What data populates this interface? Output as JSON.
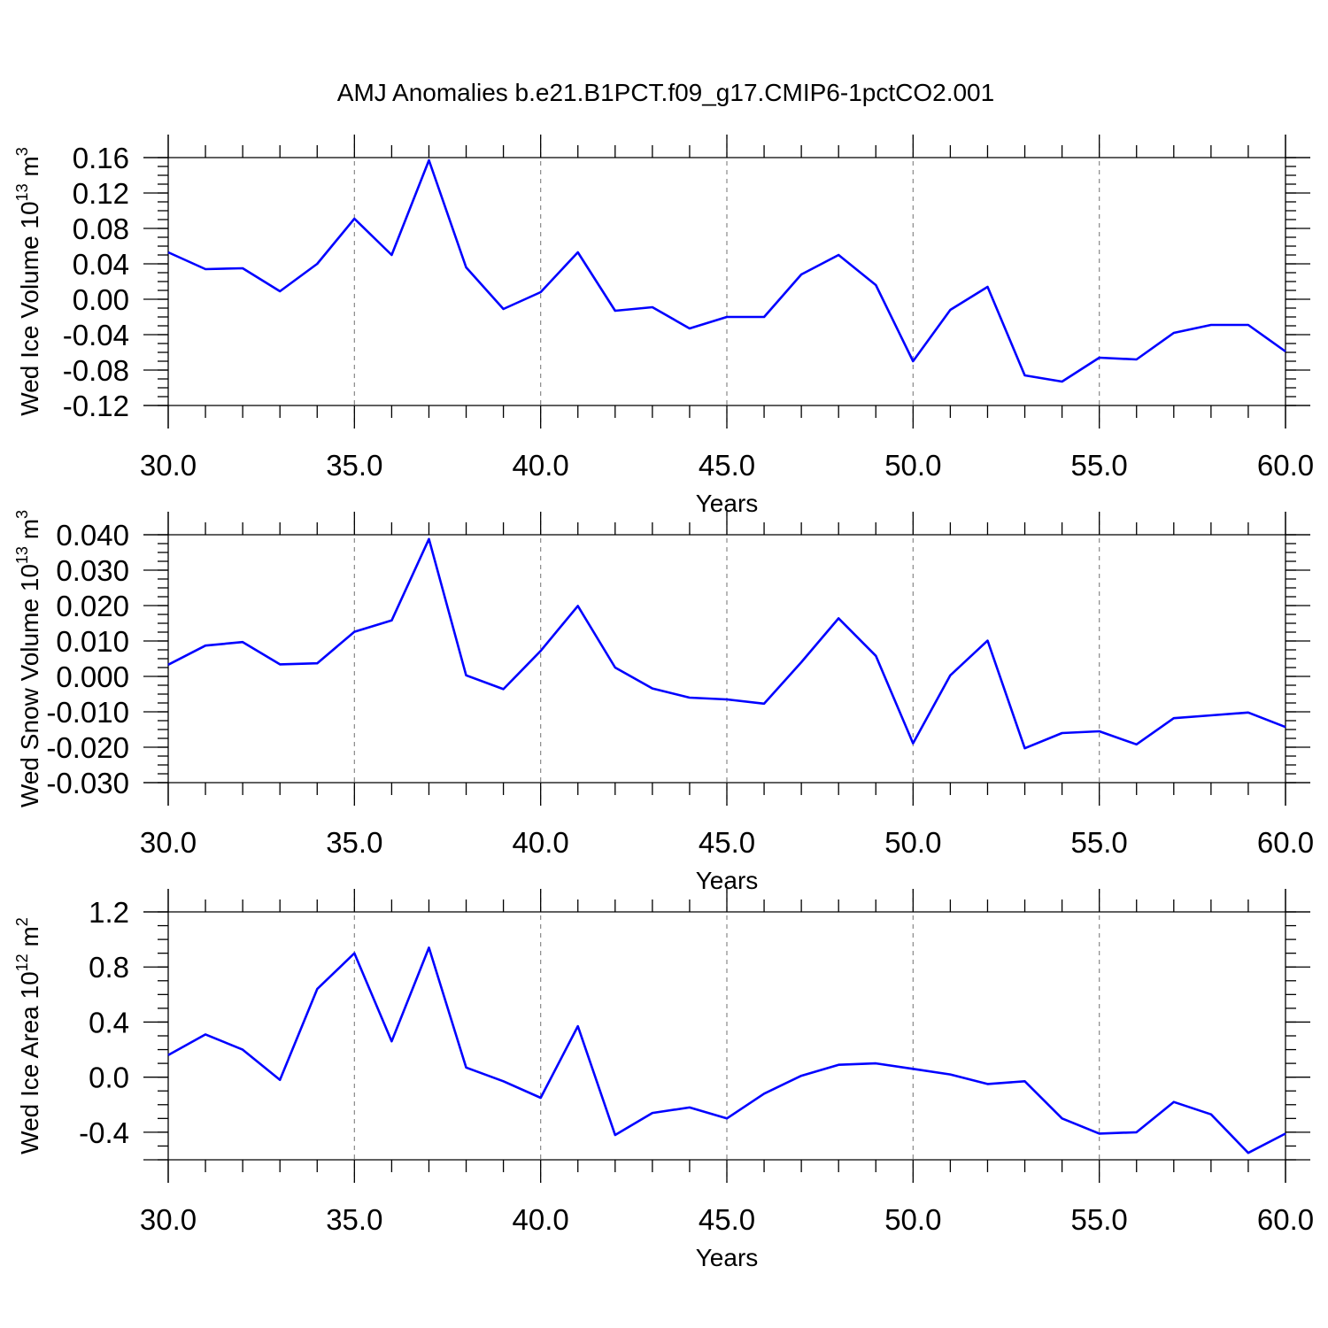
{
  "title": "AMJ Anomalies b.e21.B1PCT.f09_g17.CMIP6-1pctCO2.001",
  "line_color": "#0000ff",
  "chart_data": [
    {
      "type": "line",
      "ylabel": "Wed Ice Volume 10",
      "ylabel_exponent": "13",
      "ylabel_unit": "m",
      "ylabel_unit_exponent": "3",
      "xlabel": "Years",
      "xlim": [
        30,
        60
      ],
      "ylim": [
        -0.12,
        0.16
      ],
      "xticks": [
        30,
        35,
        40,
        45,
        50,
        55,
        60
      ],
      "xtick_labels": [
        "30.0",
        "35.0",
        "40.0",
        "45.0",
        "50.0",
        "55.0",
        "60.0"
      ],
      "yticks": [
        -0.12,
        -0.08,
        -0.04,
        0.0,
        0.04,
        0.08,
        0.12,
        0.16
      ],
      "ytick_labels": [
        "-0.12",
        "-0.08",
        "-0.04",
        "0.00",
        "0.04",
        "0.08",
        "0.12",
        "0.16"
      ],
      "yminor_step": 0.01,
      "grid": "vertical dashed",
      "x": [
        30,
        31,
        32,
        33,
        34,
        35,
        36,
        37,
        38,
        39,
        40,
        41,
        42,
        43,
        44,
        45,
        46,
        47,
        48,
        49,
        50,
        51,
        52,
        53,
        54,
        55,
        56,
        57,
        58,
        59,
        60
      ],
      "values": [
        0.053,
        0.034,
        0.035,
        0.009,
        0.04,
        0.091,
        0.05,
        0.157,
        0.036,
        -0.011,
        0.008,
        0.053,
        -0.013,
        -0.009,
        -0.033,
        -0.02,
        -0.02,
        0.028,
        0.05,
        0.016,
        -0.07,
        -0.012,
        0.014,
        -0.086,
        -0.093,
        -0.066,
        -0.068,
        -0.038,
        -0.029,
        -0.029,
        -0.059
      ]
    },
    {
      "type": "line",
      "ylabel": "Wed Snow Volume 10",
      "ylabel_exponent": "13",
      "ylabel_unit": "m",
      "ylabel_unit_exponent": "3",
      "xlabel": "Years",
      "xlim": [
        30,
        60
      ],
      "ylim": [
        -0.03,
        0.04
      ],
      "xticks": [
        30,
        35,
        40,
        45,
        50,
        55,
        60
      ],
      "xtick_labels": [
        "30.0",
        "35.0",
        "40.0",
        "45.0",
        "50.0",
        "55.0",
        "60.0"
      ],
      "yticks": [
        -0.03,
        -0.02,
        -0.01,
        0.0,
        0.01,
        0.02,
        0.03,
        0.04
      ],
      "ytick_labels": [
        "-0.030",
        "-0.020",
        "-0.010",
        "0.000",
        "0.010",
        "0.020",
        "0.030",
        "0.040"
      ],
      "yminor_step": 0.0025,
      "grid": "vertical dashed",
      "x": [
        30,
        31,
        32,
        33,
        34,
        35,
        36,
        37,
        38,
        39,
        40,
        41,
        42,
        43,
        44,
        45,
        46,
        47,
        48,
        49,
        50,
        51,
        52,
        53,
        54,
        55,
        56,
        57,
        58,
        59,
        60
      ],
      "values": [
        0.0033,
        0.0087,
        0.0097,
        0.0034,
        0.0037,
        0.0126,
        0.0158,
        0.0388,
        0.0003,
        -0.0036,
        0.0072,
        0.0199,
        0.0025,
        -0.0034,
        -0.006,
        -0.0065,
        -0.0077,
        0.004,
        0.0164,
        0.0058,
        -0.0189,
        0.0003,
        0.0101,
        -0.0203,
        -0.016,
        -0.0155,
        -0.0192,
        -0.0118,
        -0.011,
        -0.0102,
        -0.0143
      ]
    },
    {
      "type": "line",
      "ylabel": "Wed Ice Area 10",
      "ylabel_exponent": "12",
      "ylabel_unit": "m",
      "ylabel_unit_exponent": "2",
      "xlabel": "Years",
      "xlim": [
        30,
        60
      ],
      "ylim": [
        -0.6,
        1.2
      ],
      "xticks": [
        30,
        35,
        40,
        45,
        50,
        55,
        60
      ],
      "xtick_labels": [
        "30.0",
        "35.0",
        "40.0",
        "45.0",
        "50.0",
        "55.0",
        "60.0"
      ],
      "yticks": [
        -0.4,
        0.0,
        0.4,
        0.8,
        1.2
      ],
      "ytick_labels": [
        "-0.4",
        "0.0",
        "0.4",
        "0.8",
        "1.2"
      ],
      "yminor_step": 0.1,
      "grid": "vertical dashed",
      "x": [
        30,
        31,
        32,
        33,
        34,
        35,
        36,
        37,
        38,
        39,
        40,
        41,
        42,
        43,
        44,
        45,
        46,
        47,
        48,
        49,
        50,
        51,
        52,
        53,
        54,
        55,
        56,
        57,
        58,
        59,
        60
      ],
      "values": [
        0.16,
        0.31,
        0.2,
        -0.02,
        0.64,
        0.9,
        0.26,
        0.94,
        0.07,
        -0.03,
        -0.15,
        0.37,
        -0.42,
        -0.26,
        -0.22,
        -0.3,
        -0.12,
        0.01,
        0.09,
        0.1,
        0.06,
        0.02,
        -0.05,
        -0.03,
        -0.3,
        -0.41,
        -0.4,
        -0.18,
        -0.27,
        -0.55,
        -0.41
      ]
    }
  ]
}
